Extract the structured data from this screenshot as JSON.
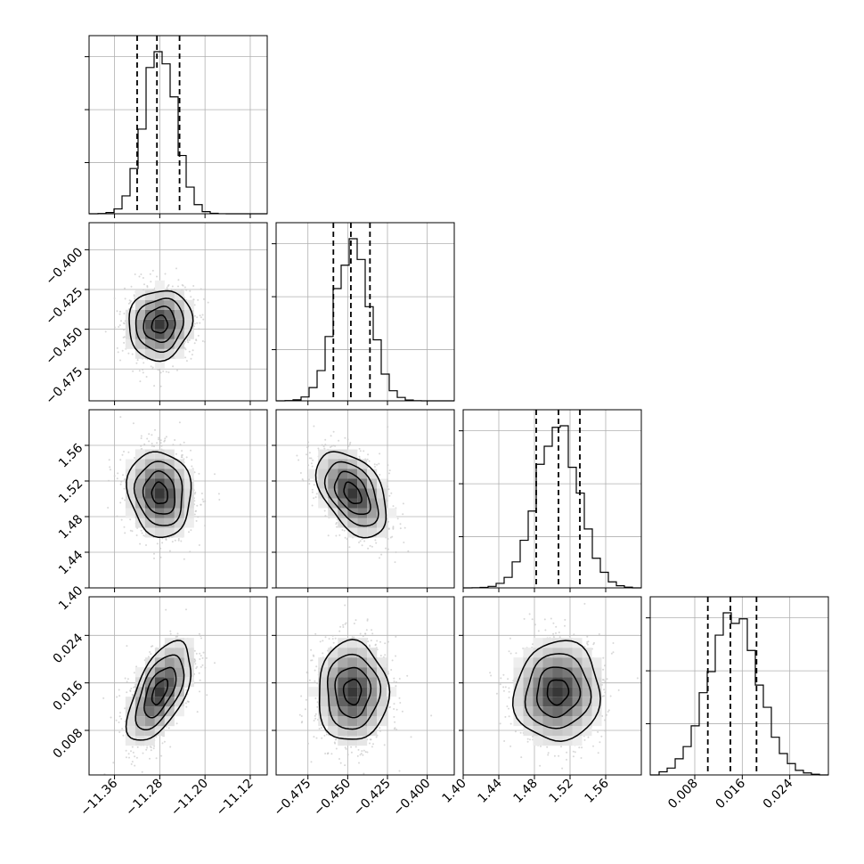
{
  "chart_data": {
    "type": "corner",
    "parameters": [
      {
        "key": "p0",
        "range": [
          -11.405,
          -11.09
        ],
        "ticks": [
          -11.36,
          -11.28,
          -11.2,
          -11.12
        ],
        "tick_labels": [
          "−11.36",
          "−11.28",
          "−11.20",
          "−11.12"
        ],
        "mean": -11.28,
        "std": 0.028,
        "quantiles": [
          -11.32,
          -11.285,
          -11.245
        ]
      },
      {
        "key": "p1",
        "range": [
          -0.495,
          -0.383
        ],
        "ticks": [
          -0.475,
          -0.45,
          -0.425,
          -0.4
        ],
        "tick_labels": [
          "−0.475",
          "−0.450",
          "−0.425",
          "−0.400"
        ],
        "mean": -0.447,
        "std": 0.011,
        "quantiles": [
          -0.459,
          -0.448,
          -0.436
        ]
      },
      {
        "key": "p2",
        "range": [
          1.4,
          1.6
        ],
        "ticks": [
          1.4,
          1.44,
          1.48,
          1.52,
          1.56
        ],
        "tick_labels": [
          "1.40",
          "1.44",
          "1.48",
          "1.52",
          "1.56"
        ],
        "mean": 1.506,
        "std": 0.024,
        "quantiles": [
          1.482,
          1.507,
          1.531
        ]
      },
      {
        "key": "p3",
        "range": [
          0.0005,
          0.0305
        ],
        "ticks": [
          0.008,
          0.016,
          0.024
        ],
        "tick_labels": [
          "0.008",
          "0.016",
          "0.024"
        ],
        "mean": 0.0145,
        "std": 0.0042,
        "quantiles": [
          0.0102,
          0.014,
          0.0184
        ]
      }
    ],
    "correlations": [
      {
        "pair": [
          0,
          1
        ],
        "r": 0.08
      },
      {
        "pair": [
          0,
          2
        ],
        "r": -0.1
      },
      {
        "pair": [
          1,
          2
        ],
        "r": -0.45
      },
      {
        "pair": [
          0,
          3
        ],
        "r": 0.58
      },
      {
        "pair": [
          1,
          3
        ],
        "r": 0.0
      },
      {
        "pair": [
          2,
          3
        ],
        "r": 0.05
      }
    ],
    "title": "",
    "grid": true,
    "contour_levels_sigma": [
      0.5,
      1.0,
      1.5,
      2.0
    ],
    "colors": {
      "ink": "#000000",
      "grid": "#b0b0b0",
      "points": "#c8c8c8"
    }
  }
}
